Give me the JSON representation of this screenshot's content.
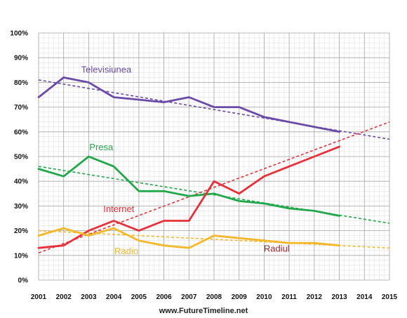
{
  "chart_data": {
    "type": "line",
    "title": "",
    "xlabel": "",
    "ylabel": "",
    "x_ticks": [
      "2001",
      "2002",
      "2003",
      "2004",
      "2005",
      "2006",
      "2007",
      "2008",
      "2009",
      "2010",
      "2011",
      "2012",
      "2013",
      "2014",
      "2015"
    ],
    "y_ticks": [
      "0%",
      "10%",
      "20%",
      "30%",
      "40%",
      "50%",
      "60%",
      "70%",
      "80%",
      "90%",
      "100%"
    ],
    "xlim": [
      2001,
      2015
    ],
    "ylim": [
      0,
      100
    ],
    "grid": true,
    "series": [
      {
        "name": "Televisiunea",
        "color": "#6b4aa8",
        "x": [
          2001,
          2002,
          2003,
          2004,
          2005,
          2006,
          2007,
          2008,
          2009,
          2010,
          2011,
          2012,
          2013
        ],
        "y": [
          74,
          82,
          80,
          74,
          73,
          72,
          74,
          70,
          70,
          66,
          64,
          62,
          60
        ],
        "trend": [
          [
            2001,
            81
          ],
          [
            2015,
            57
          ]
        ]
      },
      {
        "name": "Presa",
        "color": "#22a84a",
        "x": [
          2001,
          2002,
          2003,
          2004,
          2005,
          2006,
          2007,
          2008,
          2009,
          2010,
          2011,
          2012,
          2013
        ],
        "y": [
          45,
          42,
          50,
          46,
          36,
          36,
          34,
          35,
          32,
          31,
          29,
          28,
          26
        ],
        "trend": [
          [
            2001,
            46
          ],
          [
            2015,
            23
          ]
        ]
      },
      {
        "name": "Internet",
        "color": "#e8303a",
        "x": [
          2001,
          2002,
          2003,
          2004,
          2005,
          2006,
          2007,
          2008,
          2009,
          2010,
          2011,
          2012,
          2013
        ],
        "y": [
          13,
          14,
          20,
          24,
          20,
          24,
          24,
          40,
          35,
          42,
          46,
          50,
          54
        ],
        "trend": [
          [
            2001,
            11
          ],
          [
            2015,
            64
          ]
        ]
      },
      {
        "name": "Radio",
        "color": "#f5b82a",
        "x": [
          2001,
          2002,
          2003,
          2004,
          2005,
          2006,
          2007,
          2008,
          2009,
          2010,
          2011,
          2012,
          2013
        ],
        "y": [
          18,
          21,
          18,
          21,
          16,
          14,
          13,
          18,
          17,
          16,
          15,
          15,
          14
        ],
        "trend": [
          [
            2001,
            20
          ],
          [
            2015,
            13
          ]
        ]
      }
    ],
    "annotations": [
      {
        "text": "Televisiunea",
        "color": "#6b4aa8",
        "x": 2003.7,
        "y": 84
      },
      {
        "text": "Presa",
        "color": "#22a84a",
        "x": 2003.5,
        "y": 52.5
      },
      {
        "text": "Internet",
        "color": "#e8303a",
        "x": 2004.2,
        "y": 27.5
      },
      {
        "text": "Radio",
        "color": "#f5b82a",
        "x": 2004.5,
        "y": 10.5
      },
      {
        "text": "Radiul",
        "color": "#9a2a35",
        "x": 2010.5,
        "y": 11.5
      }
    ]
  },
  "footer": {
    "source": "www.FutureTimeline.net"
  }
}
